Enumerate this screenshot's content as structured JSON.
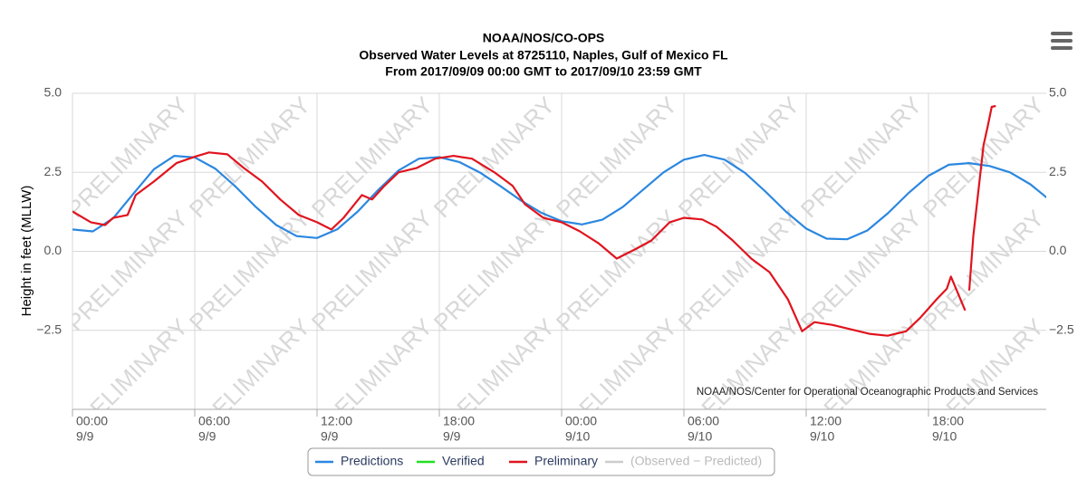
{
  "chart_data": {
    "type": "line",
    "title": "NOAA/NOS/CO-OPS",
    "subtitle": "Observed Water Levels at 8725110, Naples, Gulf of Mexico FL",
    "subtitle2": "From 2017/09/09 00:00 GMT to 2017/09/10 23:59 GMT",
    "y_label": "Height in feet (MLLW)",
    "credit": "NOAA/NOS/Center for Operational Oceanographic Products and Services",
    "watermark": "PRELIMINARY",
    "grid": true,
    "xlim": [
      0,
      48
    ],
    "ylim": [
      -5,
      5
    ],
    "y2lim": [
      -5,
      5
    ],
    "xticks": [
      {
        "value": 0,
        "label": [
          "00:00",
          "9/9"
        ]
      },
      {
        "value": 6,
        "label": [
          "06:00",
          "9/9"
        ]
      },
      {
        "value": 12,
        "label": [
          "12:00",
          "9/9"
        ]
      },
      {
        "value": 18,
        "label": [
          "18:00",
          "9/9"
        ]
      },
      {
        "value": 24,
        "label": [
          "00:00",
          "9/10"
        ]
      },
      {
        "value": 30,
        "label": [
          "06:00",
          "9/10"
        ]
      },
      {
        "value": 36,
        "label": [
          "12:00",
          "9/10"
        ]
      },
      {
        "value": 42,
        "label": [
          "18:00",
          "9/10"
        ]
      }
    ],
    "yticks": [
      {
        "value": 5,
        "label": "5.0"
      },
      {
        "value": 2.5,
        "label": "2.5"
      },
      {
        "value": 0,
        "label": "0.0"
      },
      {
        "value": -2.5,
        "label": "−2.5"
      }
    ],
    "y2ticks": [
      {
        "value": 5,
        "label": "5.0"
      },
      {
        "value": 2.5,
        "label": "2.5"
      },
      {
        "value": 0,
        "label": "0.0"
      },
      {
        "value": -2.5,
        "label": "−2.5"
      }
    ],
    "series": [
      {
        "name": "Predictions",
        "color": "#2b87e0",
        "x": [
          0,
          1,
          2,
          3,
          4,
          5,
          6,
          7,
          8,
          9,
          10,
          11,
          12,
          13,
          14,
          15,
          16,
          17,
          18,
          19,
          20,
          21,
          22,
          23,
          24,
          25,
          26,
          27,
          28,
          29,
          30,
          31,
          32,
          33,
          34,
          35,
          36,
          37,
          38,
          39,
          40,
          41,
          42,
          43,
          44,
          45,
          46,
          47,
          47.8
        ],
        "values": [
          0.69,
          0.63,
          1.05,
          1.83,
          2.6,
          3.02,
          2.97,
          2.62,
          2.05,
          1.4,
          0.83,
          0.48,
          0.42,
          0.7,
          1.26,
          1.94,
          2.56,
          2.93,
          2.98,
          2.82,
          2.49,
          2.06,
          1.61,
          1.22,
          0.95,
          0.85,
          1.0,
          1.4,
          1.95,
          2.5,
          2.9,
          3.05,
          2.9,
          2.48,
          1.89,
          1.26,
          0.72,
          0.4,
          0.38,
          0.66,
          1.2,
          1.83,
          2.39,
          2.74,
          2.79,
          2.7,
          2.5,
          2.12,
          1.7
        ]
      },
      {
        "name": "Verified",
        "color": "#22e022",
        "x": [],
        "values": []
      },
      {
        "name": "Preliminary",
        "color": "#e0141e",
        "x": [
          0,
          0.9,
          1.6,
          2,
          2.7,
          3.1,
          4,
          5.1,
          6,
          6.7,
          7.6,
          8.4,
          9.3,
          10.2,
          11.1,
          12,
          12.7,
          13.3,
          14.2,
          14.7,
          15.3,
          16,
          16.9,
          17.8,
          18.7,
          19.6,
          20.7,
          21.6,
          22.2,
          23.1,
          24,
          24.9,
          25.8,
          26.7,
          27.6,
          28.4,
          29.3,
          30,
          30.9,
          31.6,
          32.4,
          33.3,
          34.2,
          35.1,
          35.8,
          36.4,
          37.3,
          38.2,
          39.1,
          40,
          40.9,
          41.6,
          42.4,
          42.9,
          43.1,
          43.8,
          43.9,
          44,
          44.2,
          44.7,
          44.9,
          45.1,
          45.3
        ],
        "values": [
          1.26,
          0.92,
          0.83,
          1.06,
          1.15,
          1.78,
          2.21,
          2.79,
          2.99,
          3.13,
          3.07,
          2.64,
          2.21,
          1.64,
          1.15,
          0.92,
          0.69,
          1.06,
          1.78,
          1.64,
          2.07,
          2.5,
          2.64,
          2.93,
          3.02,
          2.93,
          2.5,
          2.07,
          1.49,
          1.06,
          0.92,
          0.63,
          0.26,
          -0.23,
          0.06,
          0.34,
          0.92,
          1.06,
          1.01,
          0.78,
          0.34,
          -0.23,
          -0.66,
          -1.52,
          -2.53,
          -2.24,
          -2.33,
          -2.47,
          -2.61,
          -2.67,
          -2.53,
          -2.1,
          -1.52,
          -1.18,
          -0.8,
          -1.87,
          null,
          -1.24,
          0.49,
          3.36,
          3.94,
          4.57,
          4.6
        ]
      },
      {
        "name": "(Observed − Predicted)",
        "color": "#cccccc",
        "x": [],
        "values": []
      }
    ]
  }
}
